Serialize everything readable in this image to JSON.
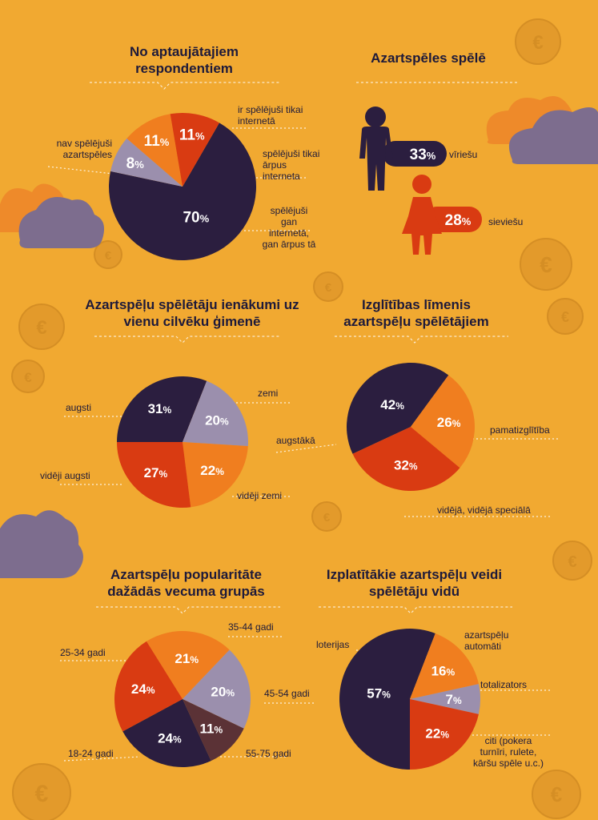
{
  "colors": {
    "background": "#F1A931",
    "dark": "#2B1E3F",
    "lavender": "#9B8FAD",
    "orange": "#F07E1F",
    "red": "#D93B12",
    "brown": "#5B3236",
    "cloud_gray": "#7D6D8E",
    "cloud_orange": "#EE8A2A"
  },
  "titles": {
    "respondents": "No aptaujātajiem respondentiem",
    "gambling": "Azartspēles spēlē",
    "income": "Azartspēļu spēlētāju ienākumi uz vienu cilvēku ģimenē",
    "education": "Izglītības līmenis azartspēļu spēlētājiem",
    "age": "Azartspēļu popularitāte dažādās vecuma grupās",
    "types": "Izplatītākie azartspēļu veidi spēlētāju vidū"
  },
  "chart_data": [
    {
      "type": "pie",
      "title": "No aptaujātajiem respondentiem",
      "slices": [
        {
          "label": "nav spēlējuši azartspēles",
          "value": 70,
          "color": "#2B1E3F"
        },
        {
          "label": "ir spēlējuši tikai internetā",
          "value": 8,
          "color": "#9B8FAD"
        },
        {
          "label": "spēlējuši tikai ārpus interneta",
          "value": 11,
          "color": "#F07E1F"
        },
        {
          "label": "spēlējuši gan internetā, gan ārpus tā",
          "value": 11,
          "color": "#D93B12"
        }
      ]
    },
    {
      "type": "bar",
      "title": "Azartspēles spēlē",
      "categories": [
        "vīriešu",
        "sieviešu"
      ],
      "values": [
        33,
        28
      ]
    },
    {
      "type": "pie",
      "title": "Azartspēļu spēlētāju ienākumi uz vienu cilvēku ģimenē",
      "slices": [
        {
          "label": "augsti",
          "value": 31,
          "color": "#2B1E3F"
        },
        {
          "label": "zemi",
          "value": 20,
          "color": "#9B8FAD"
        },
        {
          "label": "vidēji zemi",
          "value": 22,
          "color": "#F07E1F"
        },
        {
          "label": "vidēji augsti",
          "value": 27,
          "color": "#D93B12"
        }
      ]
    },
    {
      "type": "pie",
      "title": "Izglītības līmenis azartspēļu spēlētājiem",
      "slices": [
        {
          "label": "augstākā",
          "value": 42,
          "color": "#2B1E3F"
        },
        {
          "label": "pamatizglītība",
          "value": 26,
          "color": "#F07E1F"
        },
        {
          "label": "vidējā, vidējā speciālā",
          "value": 32,
          "color": "#D93B12"
        }
      ]
    },
    {
      "type": "pie",
      "title": "Azartspēļu popularitāte dažādās vecuma grupās",
      "slices": [
        {
          "label": "35-44 gadi",
          "value": 21,
          "color": "#F07E1F"
        },
        {
          "label": "45-54 gadi",
          "value": 20,
          "color": "#9B8FAD"
        },
        {
          "label": "55-75 gadi",
          "value": 11,
          "color": "#5B3236"
        },
        {
          "label": "18-24 gadi",
          "value": 24,
          "color": "#2B1E3F"
        },
        {
          "label": "25-34 gadi",
          "value": 24,
          "color": "#D93B12"
        }
      ]
    },
    {
      "type": "pie",
      "title": "Izplatītākie azartspēļu veidi spēlētāju vidū",
      "slices": [
        {
          "label": "loterijas",
          "value": 57,
          "color": "#2B1E3F"
        },
        {
          "label": "azartspēļu automāti",
          "value": 16,
          "color": "#F07E1F"
        },
        {
          "label": "totalizators",
          "value": 7,
          "color": "#9B8FAD"
        },
        {
          "label": "citi (pokera turnīri, rulete, kāršu spēle u.c.)",
          "value": 22,
          "color": "#D93B12"
        }
      ]
    }
  ],
  "labels": {
    "p1": [
      "nav spēlējuši azartspēles",
      "ir spēlējuši tikai internetā",
      "spēlējuši tikai ārpus interneta",
      "spēlējuši gan internetā, gan ārpus tā"
    ],
    "g": [
      "vīriešu",
      "sieviešu"
    ],
    "p2": [
      "augsti",
      "zemi",
      "vidēji zemi",
      "vidēji augsti"
    ],
    "p3": [
      "augstākā",
      "pamatizglītība",
      "vidējā, vidējā speciālā"
    ],
    "p4": [
      "35-44 gadi",
      "45-54 gadi",
      "55-75 gadi",
      "18-24 gadi",
      "25-34 gadi"
    ],
    "p5": [
      "loterijas",
      "azartspēļu automāti",
      "totalizators",
      "citi (pokera turnīri, rulete, kāršu spēle u.c.)"
    ]
  }
}
